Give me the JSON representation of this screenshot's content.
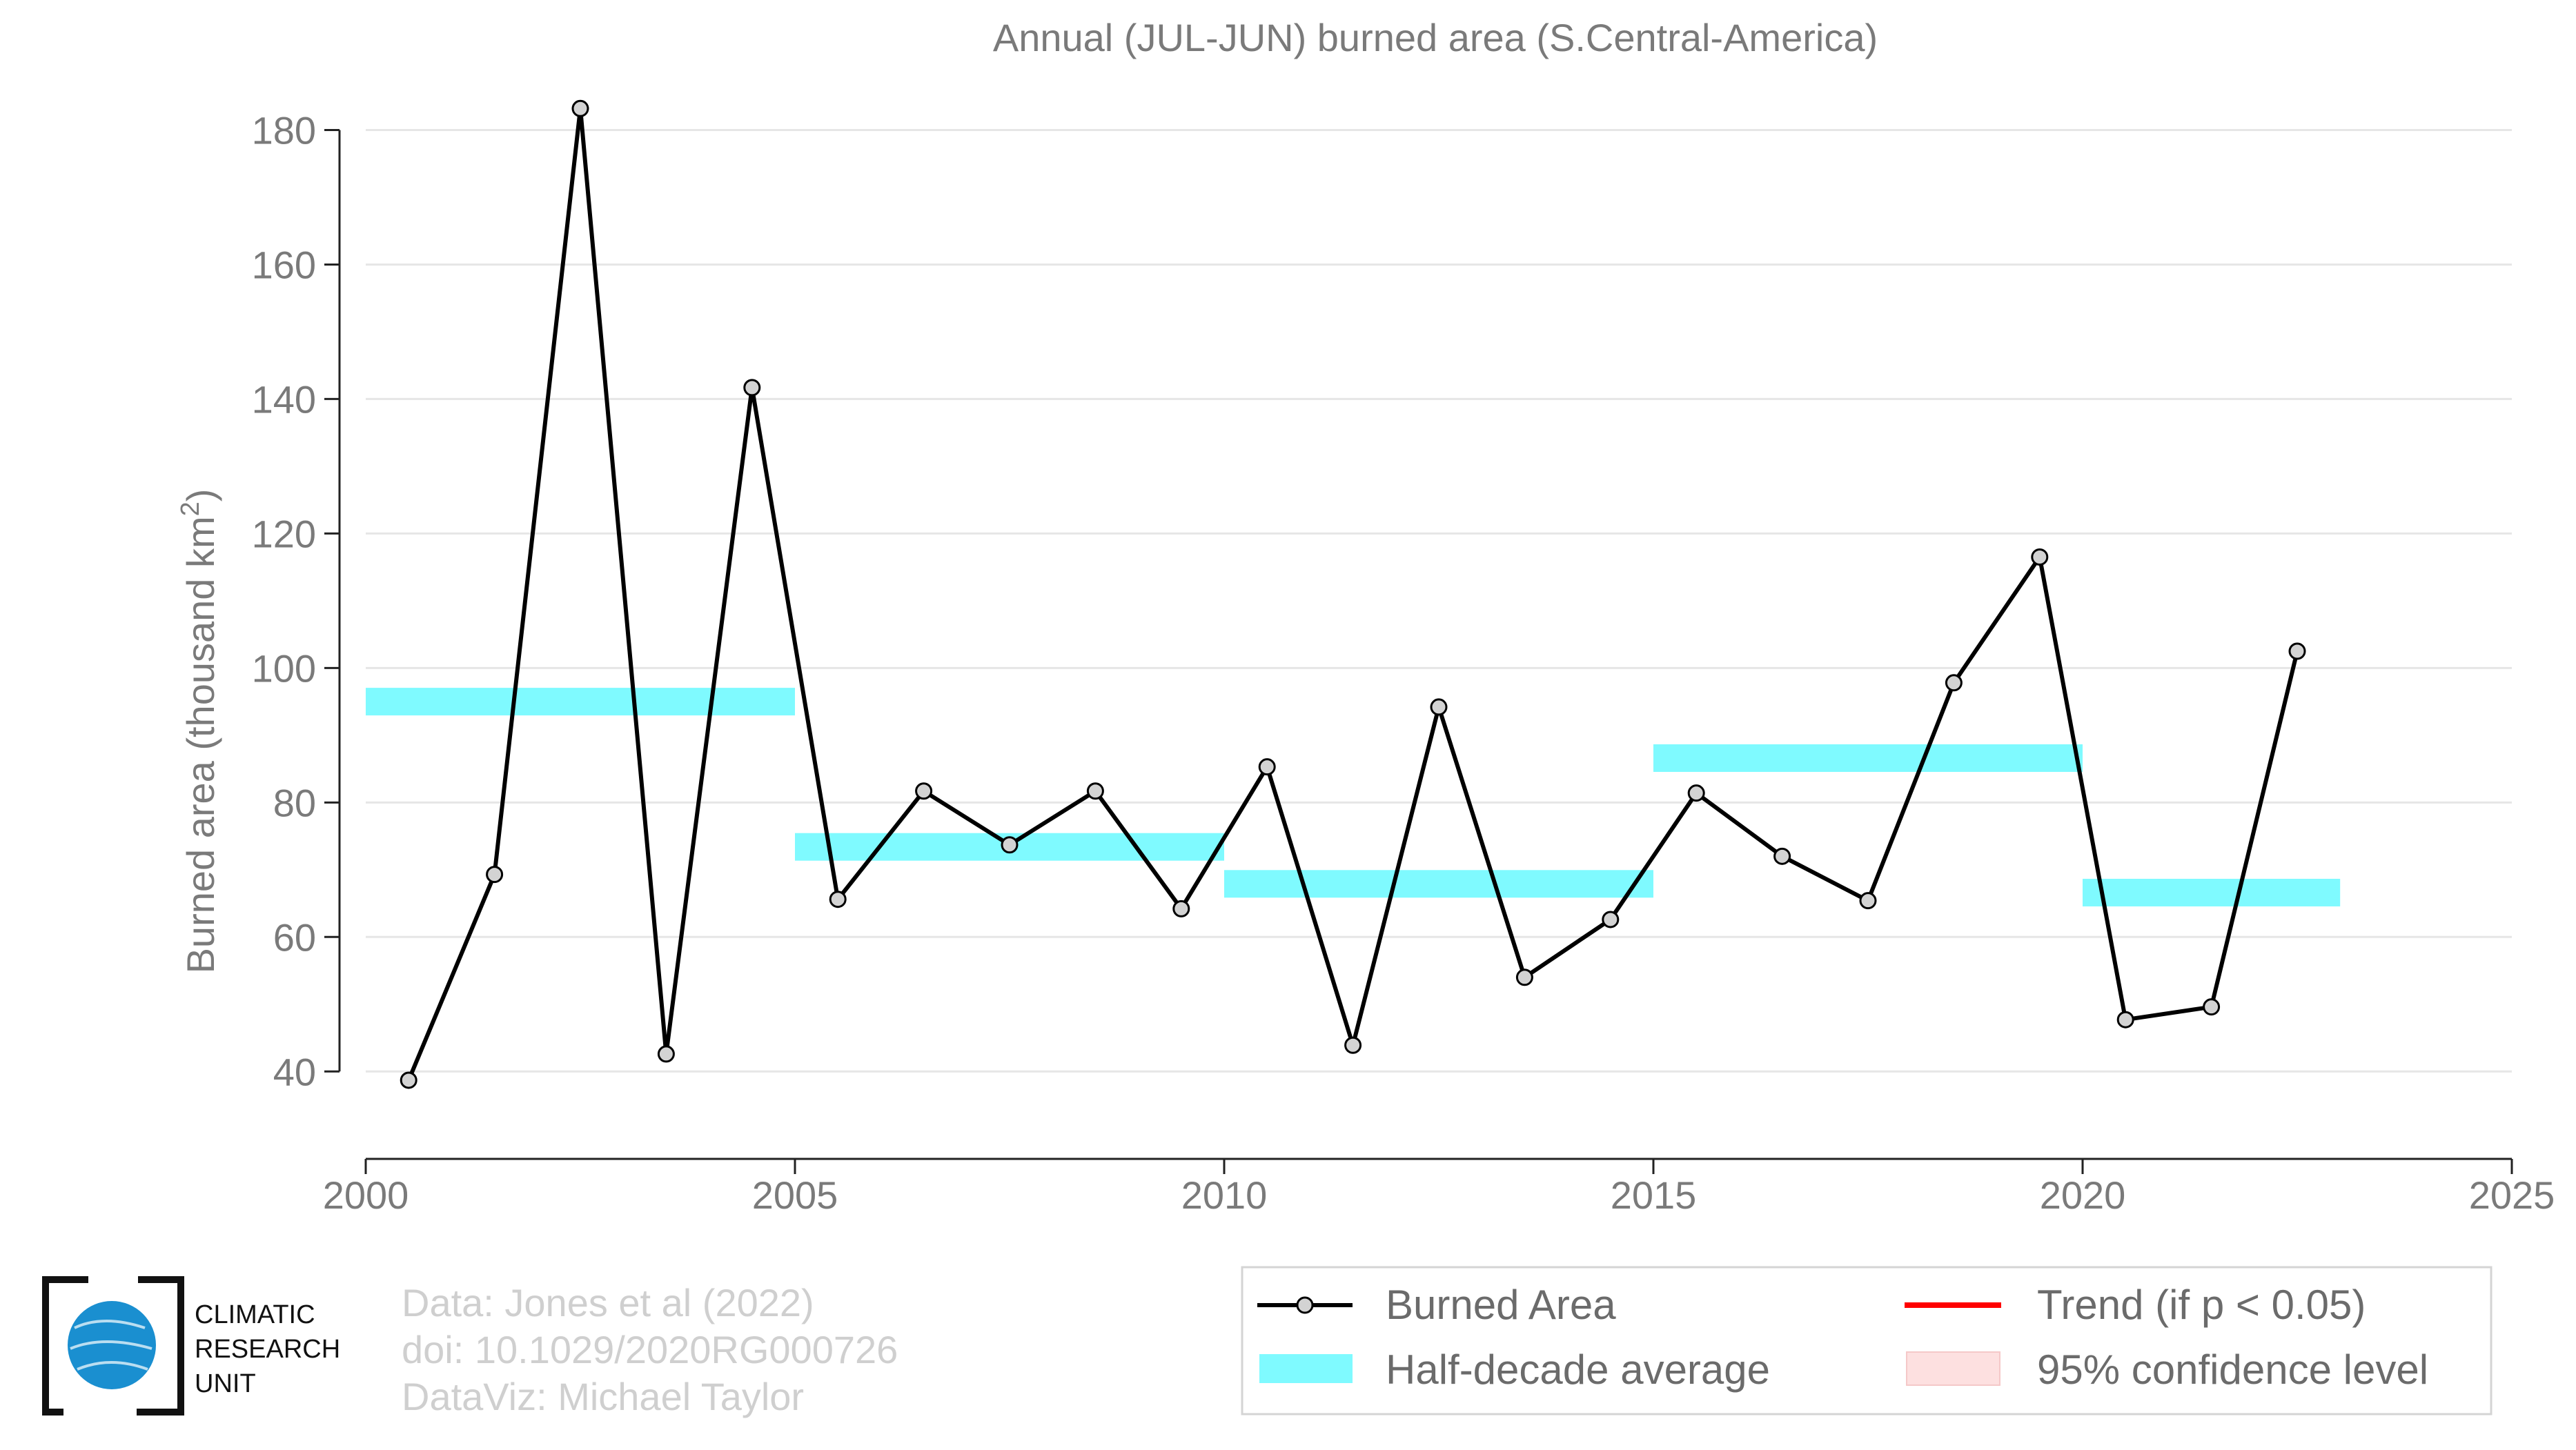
{
  "chart_data": {
    "type": "line",
    "title": "Annual (JUL-JUN) burned area (S.Central-America)",
    "ylabel_main": "Burned area (thousand km",
    "ylabel_sup": "2",
    "ylabel_end": ")",
    "xlim": [
      2000,
      2025
    ],
    "ylim": [
      27,
      186
    ],
    "x_ticks": [
      "2000",
      "2005",
      "2010",
      "2015",
      "2020",
      "2025"
    ],
    "y_ticks": [
      "40",
      "60",
      "80",
      "100",
      "120",
      "140",
      "160",
      "180"
    ],
    "grid": true,
    "series": [
      {
        "name": "Burned Area",
        "x": [
          2000.5,
          2001.5,
          2002.5,
          2003.5,
          2004.5,
          2005.5,
          2006.5,
          2007.5,
          2008.5,
          2009.5,
          2010.5,
          2011.5,
          2012.5,
          2013.5,
          2014.5,
          2015.5,
          2016.5,
          2017.5,
          2018.5,
          2019.5,
          2020.5,
          2021.5,
          2022.5
        ],
        "values": [
          38.7,
          69.3,
          183.2,
          42.6,
          141.7,
          65.6,
          81.7,
          73.7,
          81.7,
          64.2,
          85.3,
          43.9,
          94.2,
          54.0,
          62.6,
          81.4,
          72.0,
          65.4,
          97.8,
          116.5,
          47.7,
          49.6,
          102.5
        ],
        "color": "#000000",
        "marker_fill": "#d3d3d3"
      },
      {
        "name": "Half-decade average",
        "segments": [
          {
            "x0": 2000,
            "x1": 2005,
            "value": 95.0
          },
          {
            "x0": 2005,
            "x1": 2010,
            "value": 73.4
          },
          {
            "x0": 2010,
            "x1": 2015,
            "value": 67.9
          },
          {
            "x0": 2015,
            "x1": 2020,
            "value": 86.6
          },
          {
            "x0": 2020,
            "x1": 2023,
            "value": 66.6
          }
        ],
        "color": "#7ffaff"
      }
    ],
    "legend": {
      "placement": "bottom-right",
      "items": [
        {
          "label": "Burned Area",
          "kind": "line-marker",
          "color": "#000000"
        },
        {
          "label": "Trend (if p < 0.05)",
          "kind": "line",
          "color": "#ff0000"
        },
        {
          "label": "Half-decade average",
          "kind": "band",
          "color": "#7ffaff"
        },
        {
          "label": "95% confidence level",
          "kind": "patch",
          "color": "#fde0e0"
        }
      ]
    }
  },
  "credits": {
    "line1": "Data: Jones et al (2022)",
    "line2": "doi: 10.1029/2020RG000726",
    "line3": "DataViz: Michael Taylor"
  },
  "logo": {
    "line1": "CLIMATIC",
    "line2": "RESEARCH",
    "line3": "UNIT",
    "color": "#1a8fd0"
  }
}
